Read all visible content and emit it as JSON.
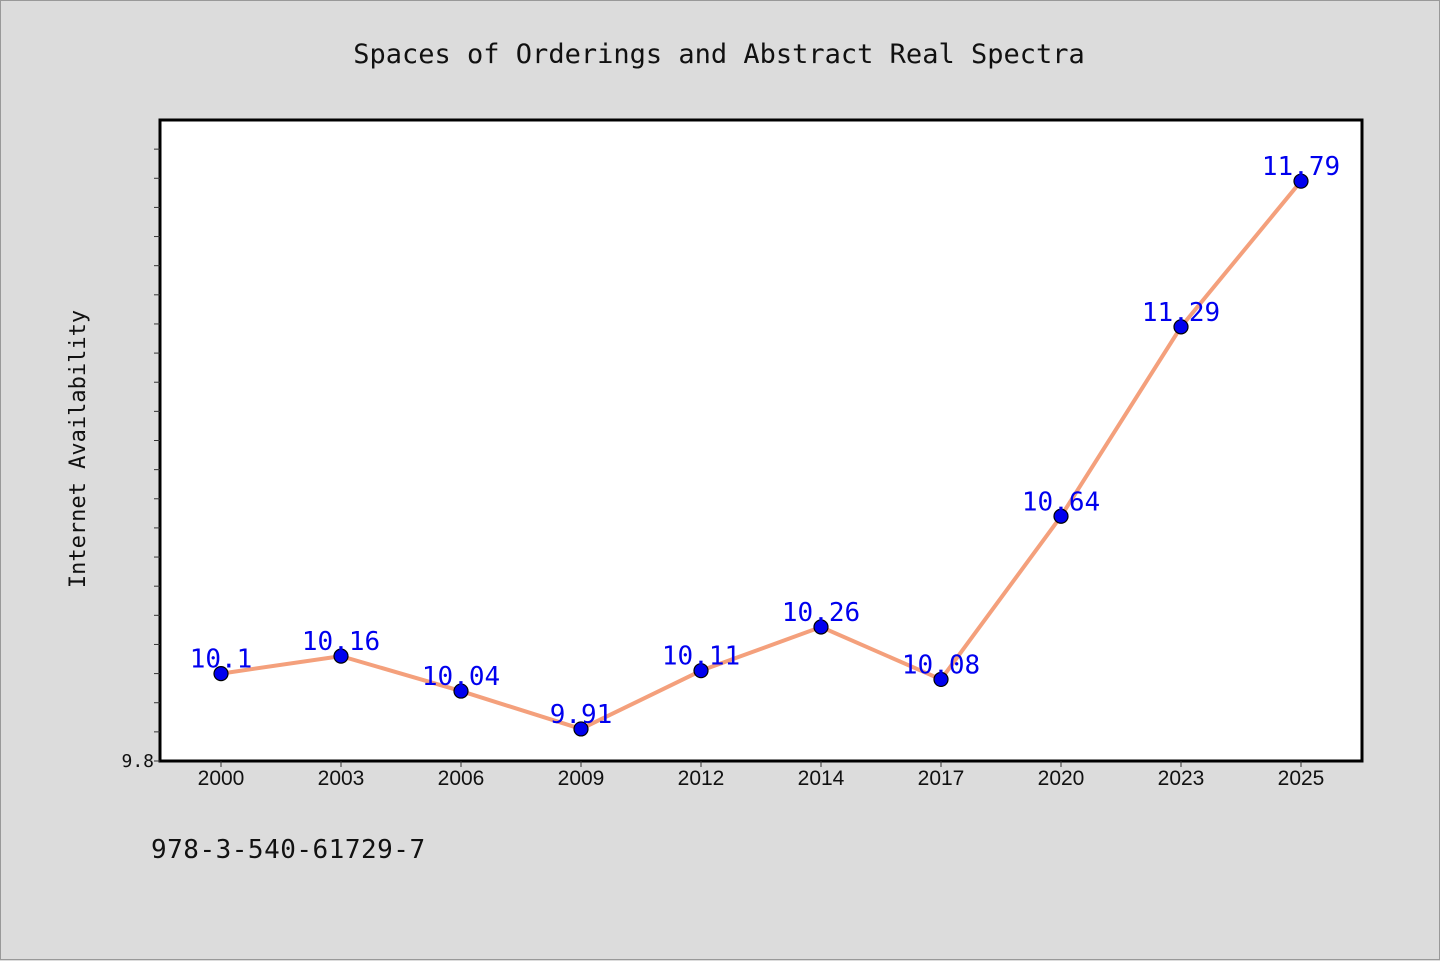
{
  "footer": {
    "isbn": "978-3-540-61729-7"
  },
  "chart_data": {
    "type": "line",
    "title": "Spaces of Orderings and Abstract Real Spectra",
    "xlabel": "",
    "ylabel": "Internet Availability",
    "categories": [
      "2000",
      "2003",
      "2006",
      "2009",
      "2012",
      "2014",
      "2017",
      "2020",
      "2023",
      "2025"
    ],
    "series": [
      {
        "values": [
          10.1,
          10.16,
          10.04,
          9.91,
          10.11,
          10.26,
          10.08,
          10.64,
          11.29,
          11.79
        ]
      }
    ],
    "data_labels": [
      "10.1",
      "10.16",
      "10.04",
      "9.91",
      "10.11",
      "10.26",
      "10.08",
      "10.64",
      "11.29",
      "11.79"
    ],
    "ylim": [
      9.8,
      12.0
    ],
    "ytick_labels": [
      "9.8"
    ],
    "grid": false,
    "colors": {
      "line": "#f4a07c",
      "marker": "#0000ee",
      "label": "#0000ee",
      "plot_bg": "#ffffff",
      "page_bg": "#dcdcdc"
    }
  }
}
